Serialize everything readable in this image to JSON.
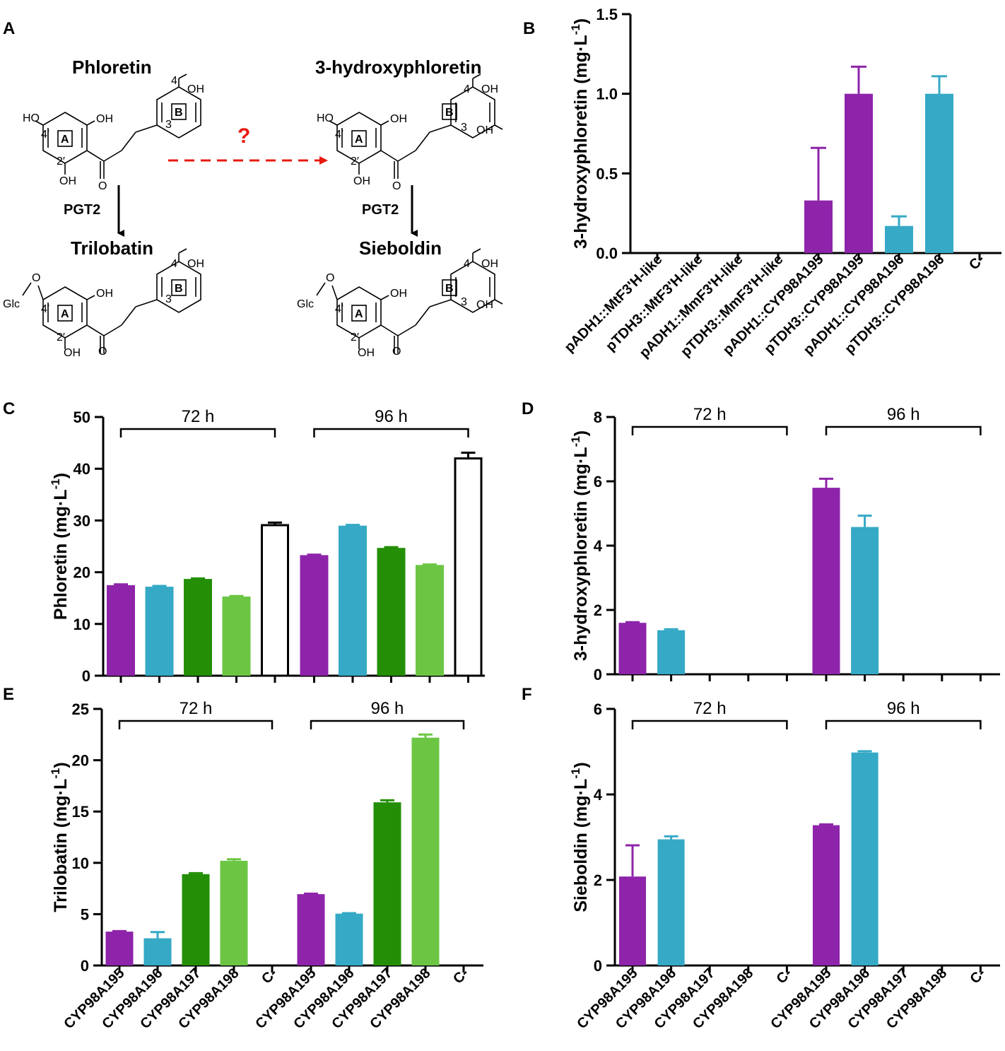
{
  "figure_panels": [
    "A",
    "B",
    "C",
    "D",
    "E",
    "F"
  ],
  "pathway": {
    "phloretin": "Phloretin",
    "hydroxy": "3-hydroxyphloretin",
    "trilobatin": "Trilobatin",
    "sieboldin": "Sieboldin",
    "enzyme": "PGT2",
    "unknown_step": "?",
    "atoms": {
      "oh": "OH",
      "ho": "HO",
      "glc": "Glc",
      "o": "O",
      "pos4": "4",
      "pos3": "3",
      "pos4p": "4′",
      "pos2p": "2′"
    },
    "ring_a": "A",
    "ring_b": "B"
  },
  "colors": {
    "CYP98A195": "#8e24aa",
    "CYP98A196": "#35a9c5",
    "CYP98A197": "#248f06",
    "CYP98A198": "#6cc644",
    "C-": "#ffffff",
    "arrow_red": "#e8190f"
  },
  "chart_data": [
    {
      "panel": "B",
      "type": "bar",
      "ylabel": "3-hydroxyphloretin (mg·L",
      "ylabel_sup": "-1",
      "ylabel_tail": ")",
      "ylim": [
        0,
        1.5
      ],
      "yticks": [
        "0.0",
        "0.5",
        "1.0",
        "1.5"
      ],
      "categories": [
        "pADH1::MtF3'H-like",
        "pTDH3::MtF3'H-like",
        "pADH1::MmF3'H-like",
        "pTDH3::MmF3'H-like",
        "pADH1::CYP98A195",
        "pTDH3::CYP98A195",
        "pADH1::CYP98A196",
        "pTDH3::CYP98A196",
        "C-"
      ],
      "values": [
        0,
        0,
        0,
        0,
        0.33,
        1.0,
        0.17,
        1.0,
        0
      ],
      "errors": [
        0,
        0,
        0,
        0,
        0.33,
        0.17,
        0.06,
        0.11,
        0
      ],
      "color_keys": [
        "CYP98A195",
        "CYP98A195",
        "CYP98A195",
        "CYP98A195",
        "CYP98A195",
        "CYP98A195",
        "CYP98A196",
        "CYP98A196",
        "C-"
      ]
    },
    {
      "panel": "C",
      "type": "bar",
      "ylabel": "Phloretin (mg·L",
      "ylabel_sup": "-1",
      "ylabel_tail": ")",
      "ylim": [
        0,
        50
      ],
      "yticks": [
        "0",
        "10",
        "20",
        "30",
        "40",
        "50"
      ],
      "groups": [
        "72 h",
        "96 h"
      ],
      "categories": [
        "CYP98A195",
        "CYP98A196",
        "CYP98A197",
        "CYP98A198",
        "C-"
      ],
      "series": [
        {
          "name": "72 h",
          "values": [
            17.5,
            17.2,
            18.7,
            15.3,
            29.3
          ],
          "errors": [
            0.15,
            0.15,
            0.1,
            0.1,
            0.3
          ]
        },
        {
          "name": "96 h",
          "values": [
            23.3,
            29.0,
            24.7,
            21.4,
            42.2
          ],
          "errors": [
            0.1,
            0.15,
            0.15,
            0.1,
            0.9
          ]
        }
      ]
    },
    {
      "panel": "D",
      "type": "bar",
      "ylabel": "3-hydroxyphloretin (mg·L",
      "ylabel_sup": "-1",
      "ylabel_tail": ")",
      "ylim": [
        0,
        8
      ],
      "yticks": [
        "0",
        "2",
        "4",
        "6",
        "8"
      ],
      "groups": [
        "72 h",
        "96 h"
      ],
      "categories": [
        "CYP98A195",
        "CYP98A196",
        "CYP98A197",
        "CYP98A198",
        "C-"
      ],
      "series": [
        {
          "name": "72 h",
          "values": [
            1.6,
            1.37,
            0,
            0,
            0
          ],
          "errors": [
            0.02,
            0.03,
            0,
            0,
            0
          ]
        },
        {
          "name": "96 h",
          "values": [
            5.8,
            4.58,
            0,
            0,
            0
          ],
          "errors": [
            0.28,
            0.35,
            0,
            0,
            0
          ]
        }
      ]
    },
    {
      "panel": "E",
      "type": "bar",
      "ylabel": "Trilobatin (mg·L",
      "ylabel_sup": "-1",
      "ylabel_tail": ")",
      "ylim": [
        0,
        25
      ],
      "yticks": [
        "0",
        "5",
        "10",
        "15",
        "20",
        "25"
      ],
      "groups": [
        "72 h",
        "96 h"
      ],
      "categories": [
        "CYP98A195",
        "CYP98A196",
        "CYP98A197",
        "CYP98A198",
        "C-"
      ],
      "series": [
        {
          "name": "72 h",
          "values": [
            3.3,
            2.65,
            8.9,
            10.2,
            0
          ],
          "errors": [
            0.05,
            0.6,
            0.1,
            0.15,
            0
          ]
        },
        {
          "name": "96 h",
          "values": [
            6.95,
            5.05,
            15.9,
            22.2,
            0
          ],
          "errors": [
            0.05,
            0.05,
            0.2,
            0.3,
            0
          ]
        }
      ]
    },
    {
      "panel": "F",
      "type": "bar",
      "ylabel": "Sieboldin (mg·L",
      "ylabel_sup": "-1",
      "ylabel_tail": ")",
      "ylim": [
        0,
        6
      ],
      "yticks": [
        "0",
        "2",
        "4",
        "6"
      ],
      "groups": [
        "72 h",
        "96 h"
      ],
      "categories": [
        "CYP98A195",
        "CYP98A196",
        "CYP98A197",
        "CYP98A198",
        "C-"
      ],
      "series": [
        {
          "name": "72 h",
          "values": [
            2.08,
            2.95,
            0,
            0,
            0
          ],
          "errors": [
            0.73,
            0.07,
            0,
            0,
            0
          ]
        },
        {
          "name": "96 h",
          "values": [
            3.28,
            4.98,
            0,
            0,
            0
          ],
          "errors": [
            0.02,
            0.03,
            0,
            0,
            0
          ]
        }
      ]
    }
  ]
}
